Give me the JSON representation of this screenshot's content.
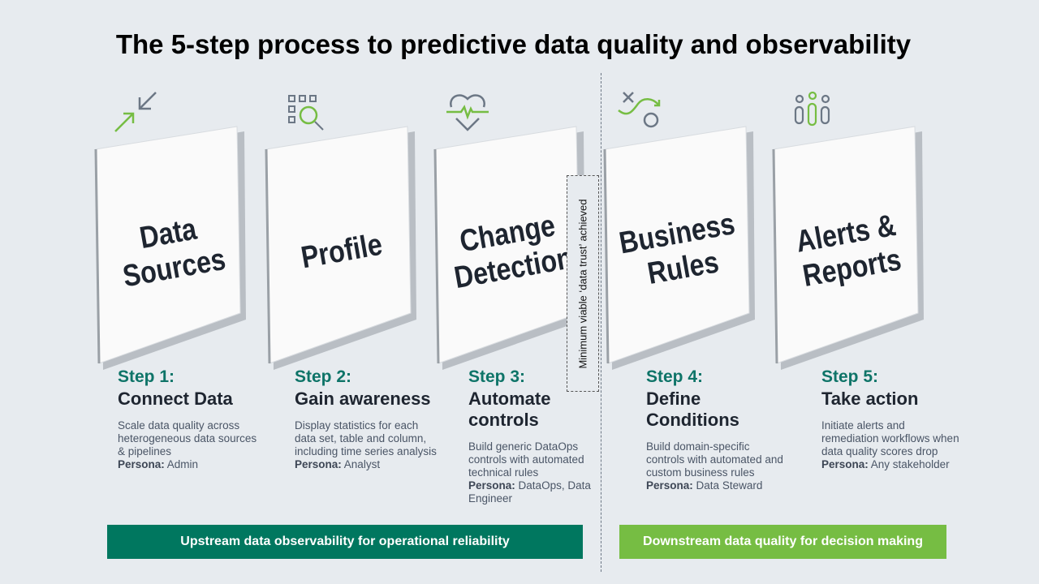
{
  "title": "The 5-step process to predictive data quality and observability",
  "colors": {
    "teal": "#00775f",
    "green": "#76bd43",
    "step_label": "#0e7468",
    "background": "#e7ebef"
  },
  "steps": [
    {
      "icon": "arrows-converge-icon",
      "card": "Data Sources",
      "label": "Step 1:",
      "title": "Connect Data",
      "desc": "Scale data quality across heterogeneous data sources & pipelines",
      "persona_label": "Persona:",
      "persona": "Admin"
    },
    {
      "icon": "grid-search-icon",
      "card": "Profile",
      "label": "Step 2:",
      "title": "Gain awareness",
      "desc": "Display statistics for each data set, table and column, including time series analysis",
      "persona_label": "Persona:",
      "persona": "Analyst"
    },
    {
      "icon": "heart-pulse-icon",
      "card": "Change Detection",
      "label": "Step 3:",
      "title": "Automate controls",
      "desc": "Build generic DataOps controls with automated technical rules",
      "persona_label": "Persona:",
      "persona": "DataOps, Data Engineer"
    },
    {
      "icon": "path-x-o-icon",
      "card": "Business Rules",
      "label": "Step 4:",
      "title": "Define Conditions",
      "desc": "Build domain-specific controls with automated and custom business rules",
      "persona_label": "Persona:",
      "persona": "Data Steward"
    },
    {
      "icon": "people-icon",
      "card": "Alerts & Reports",
      "label": "Step 5:",
      "title": "Take action",
      "desc": "Initiate alerts and remediation workflows when data quality scores drop",
      "persona_label": "Persona:",
      "persona": "Any stakeholder"
    }
  ],
  "mvp_note": "Minimum viable ‘data trust’ achieved",
  "bands": {
    "upstream": "Upstream data observability for operational reliability",
    "downstream": "Downstream data quality for decision making"
  }
}
